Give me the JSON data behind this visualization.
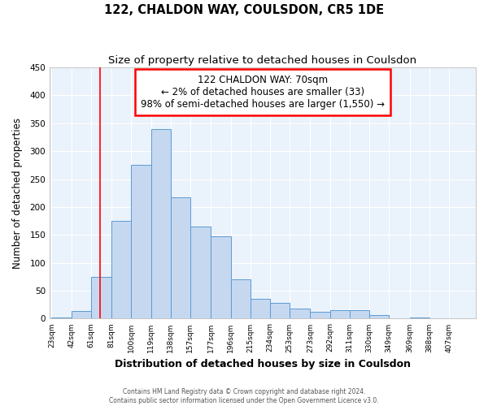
{
  "title": "122, CHALDON WAY, COULSDON, CR5 1DE",
  "subtitle": "Size of property relative to detached houses in Coulsdon",
  "xlabel": "Distribution of detached houses by size in Coulsdon",
  "ylabel": "Number of detached properties",
  "bin_labels": [
    "23sqm",
    "42sqm",
    "61sqm",
    "81sqm",
    "100sqm",
    "119sqm",
    "138sqm",
    "157sqm",
    "177sqm",
    "196sqm",
    "215sqm",
    "234sqm",
    "253sqm",
    "273sqm",
    "292sqm",
    "311sqm",
    "330sqm",
    "349sqm",
    "369sqm",
    "388sqm",
    "407sqm"
  ],
  "bar_heights": [
    2,
    13,
    75,
    175,
    275,
    340,
    218,
    165,
    147,
    70,
    35,
    28,
    18,
    12,
    15,
    15,
    7,
    1,
    2,
    1,
    0
  ],
  "bar_color": "#c5d8f0",
  "bar_edgecolor": "#5b9bd5",
  "bin_edges": [
    23,
    42,
    61,
    81,
    100,
    119,
    138,
    157,
    177,
    196,
    215,
    234,
    253,
    273,
    292,
    311,
    330,
    349,
    369,
    388,
    407,
    426
  ],
  "red_line_x": 70,
  "annotation_line1": "122 CHALDON WAY: 70sqm",
  "annotation_line2": "← 2% of detached houses are smaller (33)",
  "annotation_line3": "98% of semi-detached houses are larger (1,550) →",
  "annotation_box_color": "white",
  "annotation_box_edgecolor": "red",
  "ylim": [
    0,
    450
  ],
  "yticks": [
    0,
    50,
    100,
    150,
    200,
    250,
    300,
    350,
    400,
    450
  ],
  "background_color": "#eaf2fb",
  "grid_color": "white",
  "footer_line1": "Contains HM Land Registry data © Crown copyright and database right 2024.",
  "footer_line2": "Contains public sector information licensed under the Open Government Licence v3.0.",
  "title_fontsize": 10.5,
  "subtitle_fontsize": 9.5,
  "xlabel_fontsize": 9,
  "ylabel_fontsize": 8.5
}
